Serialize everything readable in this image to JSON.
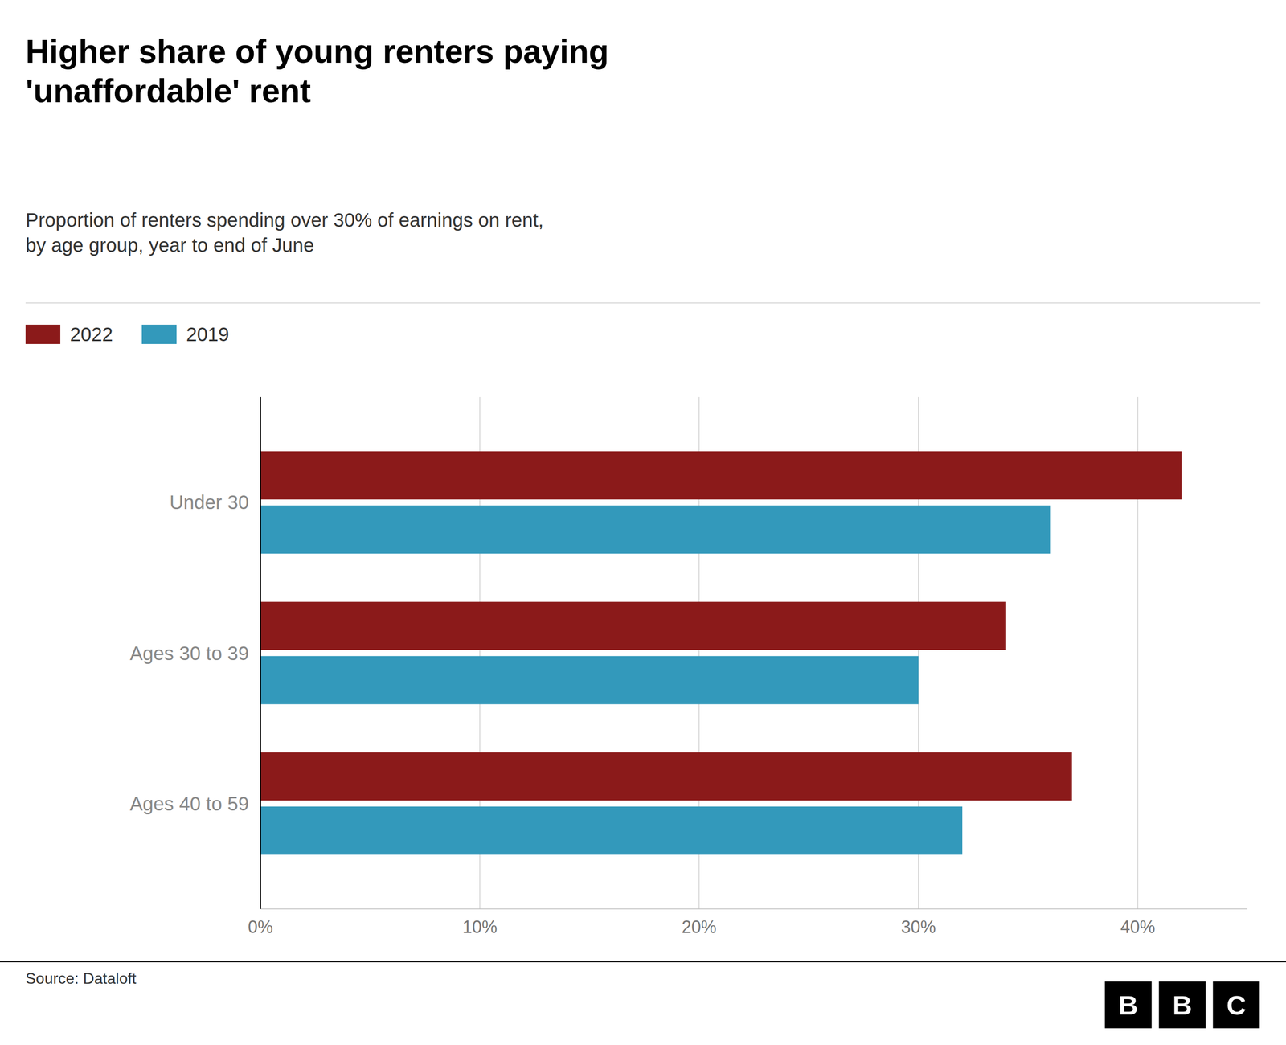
{
  "chart_data": {
    "type": "bar",
    "orientation": "horizontal",
    "title": "Higher share of young renters paying\n'unaffordable' rent",
    "subtitle": "Proportion of renters spending over 30% of earnings on rent,\nby age group, year to end of June",
    "categories": [
      "Under 30",
      "Ages 30 to 39",
      "Ages 40 to 59"
    ],
    "series": [
      {
        "name": "2022",
        "color": "#8B1A1A",
        "values": [
          42,
          34,
          37
        ]
      },
      {
        "name": "2019",
        "color": "#3399BB",
        "values": [
          36,
          30,
          32
        ]
      }
    ],
    "xlim": [
      0,
      45
    ],
    "xticks": [
      {
        "value": 0,
        "label": "0%"
      },
      {
        "value": 10,
        "label": "10%"
      },
      {
        "value": 20,
        "label": "20%"
      },
      {
        "value": 30,
        "label": "30%"
      },
      {
        "value": 40,
        "label": "40%"
      }
    ],
    "grid": true,
    "legend": "top-left",
    "source": "Source: Dataloft",
    "logo": "BBC"
  }
}
